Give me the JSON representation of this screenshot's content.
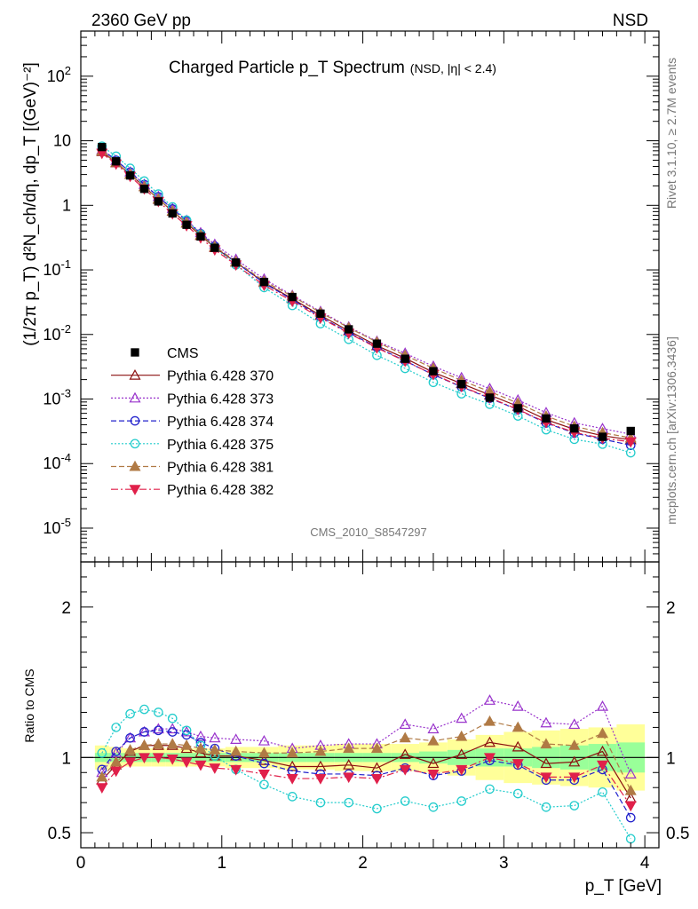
{
  "header": {
    "left": "2360 GeV pp",
    "right": "NSD"
  },
  "side_labels": {
    "rivet": "Rivet 3.1.10, ≥ 2.7M events",
    "mcplots": "mcplots.cern.ch [arXiv:1306.3436]"
  },
  "chart_data": {
    "type": "scatter",
    "title": "Charged Particle p_T Spectrum",
    "title_suffix": "(NSD, |η| < 2.4)",
    "ylabel": "(1/2π p_T) d²N_ch/dη, dp_T [(GeV)⁻²]",
    "xlabel": "p_T [GeV]",
    "ratio_ylabel": "Ratio to CMS",
    "analysis_tag": "CMS_2010_S8547297",
    "xlim": [
      0,
      4.1
    ],
    "ylim": [
      3e-06,
      500
    ],
    "yscale": "log",
    "ratio_ylim": [
      0.4,
      2.3
    ],
    "x_ticks": [
      "0",
      "1",
      "2",
      "3",
      "4"
    ],
    "y_tick_labels": [
      "10^-5",
      "10^-4",
      "10^-3",
      "10^-2",
      "10^-1",
      "1",
      "10",
      "10^2"
    ],
    "ratio_tick_labels": [
      "0.5",
      "1",
      "2"
    ],
    "x": [
      0.15,
      0.25,
      0.35,
      0.45,
      0.55,
      0.65,
      0.75,
      0.85,
      0.95,
      1.1,
      1.3,
      1.5,
      1.7,
      1.9,
      2.1,
      2.3,
      2.5,
      2.7,
      2.9,
      3.1,
      3.3,
      3.5,
      3.7,
      3.9
    ],
    "data": {
      "name": "CMS",
      "values": [
        8.0,
        4.8,
        2.9,
        1.8,
        1.15,
        0.75,
        0.5,
        0.33,
        0.22,
        0.13,
        0.065,
        0.038,
        0.021,
        0.012,
        0.0072,
        0.0042,
        0.0027,
        0.0017,
        0.00105,
        0.00072,
        0.0005,
        0.00035,
        0.00026,
        0.00032
      ]
    },
    "band_outer": [
      0.08,
      0.07,
      0.06,
      0.06,
      0.06,
      0.06,
      0.06,
      0.06,
      0.06,
      0.07,
      0.07,
      0.08,
      0.08,
      0.09,
      0.09,
      0.09,
      0.1,
      0.12,
      0.15,
      0.17,
      0.18,
      0.19,
      0.2,
      0.22
    ],
    "band_inner": [
      0.03,
      0.03,
      0.03,
      0.03,
      0.03,
      0.03,
      0.03,
      0.03,
      0.03,
      0.03,
      0.03,
      0.03,
      0.03,
      0.03,
      0.03,
      0.03,
      0.04,
      0.05,
      0.06,
      0.06,
      0.07,
      0.08,
      0.09,
      0.1
    ],
    "series": [
      {
        "name": "Pythia 6.428 370",
        "color": "#8b1010",
        "marker": "triangle-open",
        "dash": "",
        "ratio": [
          0.85,
          0.95,
          1.04,
          1.08,
          1.08,
          1.08,
          1.06,
          1.03,
          1.01,
          1.01,
          0.98,
          0.94,
          0.94,
          0.95,
          0.93,
          1.02,
          0.96,
          1.02,
          1.1,
          1.07,
          0.96,
          0.97,
          1.04,
          0.73
        ]
      },
      {
        "name": "Pythia 6.428 373",
        "color": "#9933cc",
        "marker": "triangle-open",
        "dash": "2,2",
        "ratio": [
          0.9,
          1.03,
          1.13,
          1.17,
          1.19,
          1.19,
          1.17,
          1.14,
          1.13,
          1.12,
          1.11,
          1.06,
          1.08,
          1.09,
          1.09,
          1.22,
          1.19,
          1.26,
          1.38,
          1.34,
          1.23,
          1.22,
          1.34,
          0.89
        ]
      },
      {
        "name": "Pythia 6.428 374",
        "color": "#2222cc",
        "marker": "circle-open",
        "dash": "6,3",
        "ratio": [
          0.92,
          1.04,
          1.13,
          1.17,
          1.18,
          1.17,
          1.15,
          1.1,
          1.06,
          1.01,
          0.96,
          0.91,
          0.89,
          0.89,
          0.88,
          0.93,
          0.88,
          0.91,
          0.98,
          0.95,
          0.85,
          0.85,
          0.92,
          0.6
        ]
      },
      {
        "name": "Pythia 6.428 375",
        "color": "#22cccc",
        "marker": "circle-open",
        "dash": "2,2",
        "ratio": [
          1.03,
          1.2,
          1.29,
          1.32,
          1.3,
          1.26,
          1.18,
          1.08,
          1.01,
          0.92,
          0.82,
          0.74,
          0.7,
          0.7,
          0.66,
          0.71,
          0.67,
          0.71,
          0.79,
          0.76,
          0.67,
          0.68,
          0.77,
          0.46
        ]
      },
      {
        "name": "Pythia 6.428 381",
        "color": "#b07a45",
        "marker": "triangle-filled",
        "dash": "6,3",
        "ratio": [
          0.87,
          0.97,
          1.05,
          1.08,
          1.09,
          1.09,
          1.08,
          1.06,
          1.05,
          1.04,
          1.03,
          1.03,
          1.04,
          1.06,
          1.06,
          1.13,
          1.11,
          1.14,
          1.24,
          1.2,
          1.09,
          1.08,
          1.16,
          0.78
        ]
      },
      {
        "name": "Pythia 6.428 382",
        "color": "#e0204a",
        "marker": "triangle-down-filled",
        "dash": "8,3,2,3",
        "ratio": [
          0.8,
          0.91,
          0.97,
          1.0,
          1.0,
          0.99,
          0.97,
          0.95,
          0.93,
          0.92,
          0.89,
          0.86,
          0.86,
          0.87,
          0.86,
          0.92,
          0.89,
          0.92,
          1.0,
          0.96,
          0.87,
          0.87,
          0.95,
          0.68
        ]
      }
    ]
  }
}
